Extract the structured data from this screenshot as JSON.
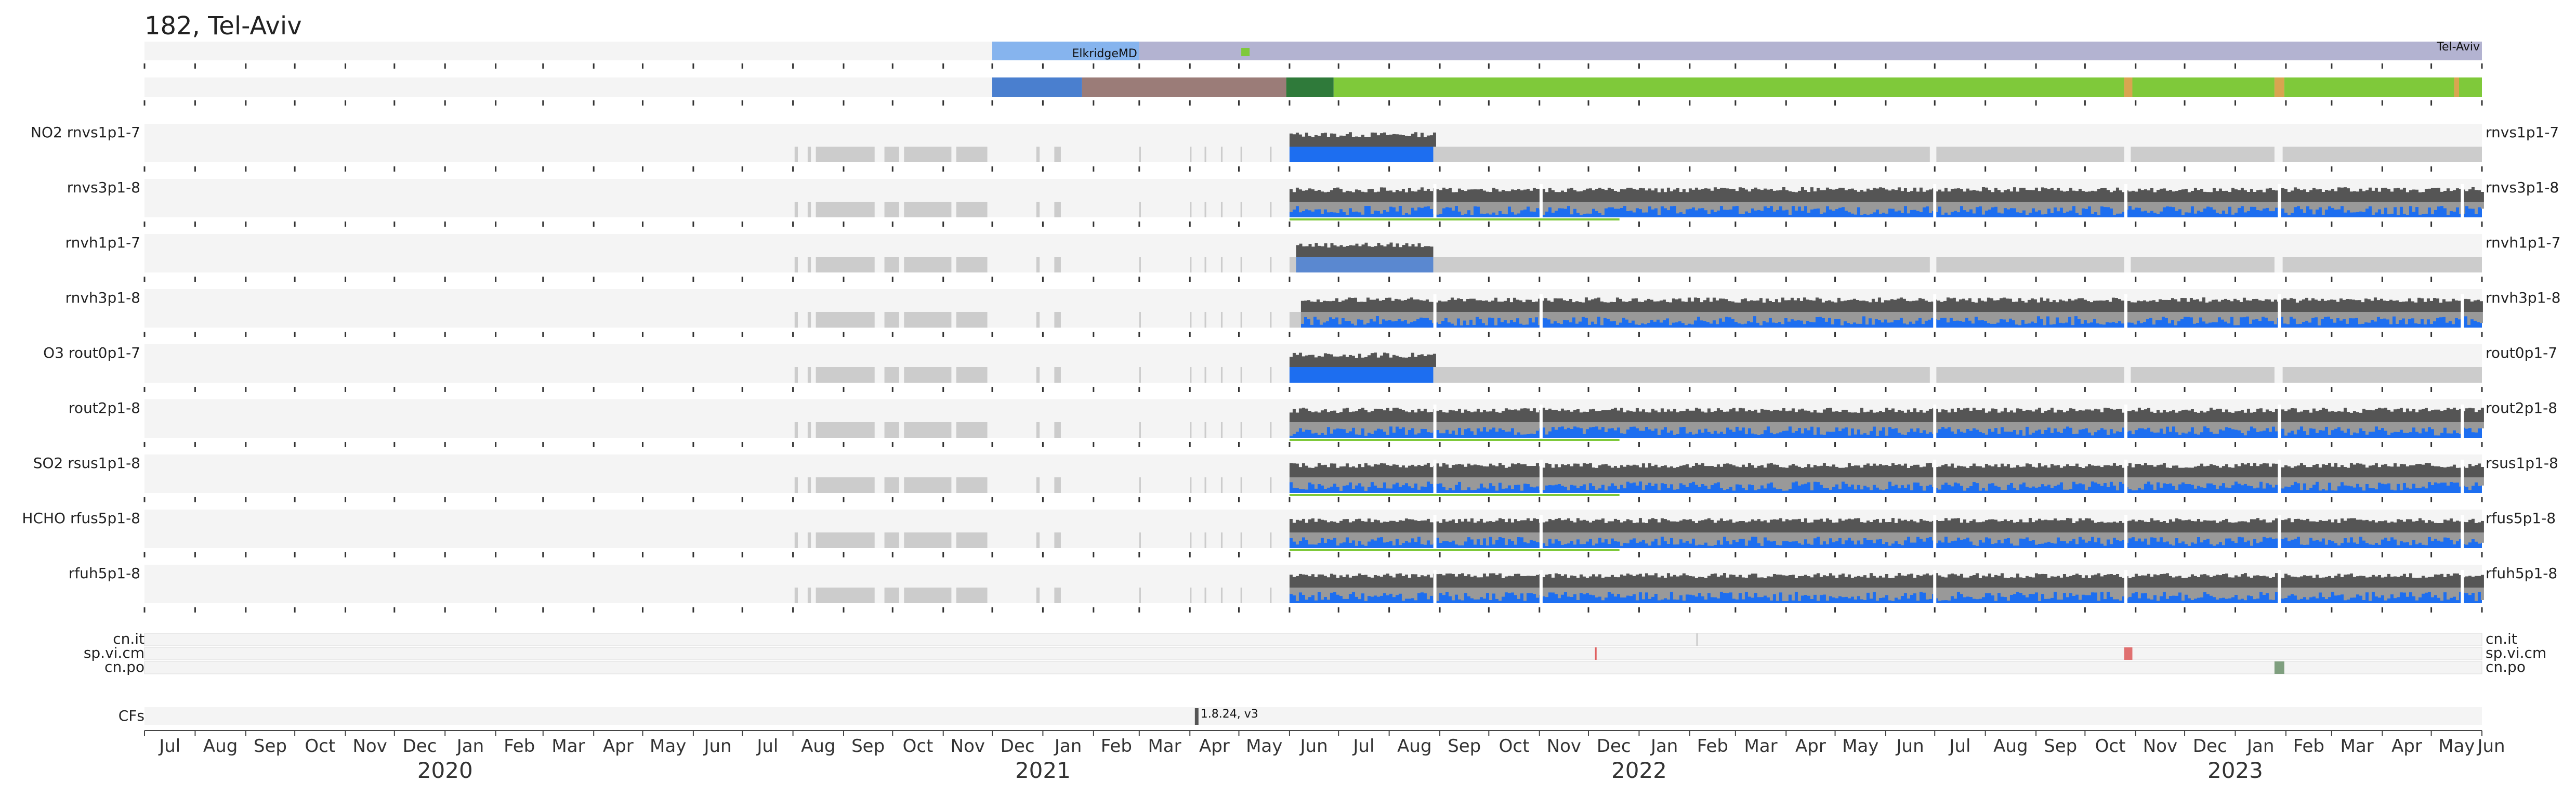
{
  "title": "182, Tel-Aviv",
  "colors": {
    "track_bg": "#f4f4f4",
    "data_dark": "#555555",
    "data_blue": "#1d6ef0",
    "data_gray_fill": "#999999",
    "unavailable": "#cccccc",
    "flag_green": "#7fc93a",
    "tick": "#333333"
  },
  "chart_data": {
    "type": "timeline",
    "time_axis": {
      "start": "2019-07",
      "end": "2023-06",
      "months": [
        "Jul",
        "Aug",
        "Sep",
        "Oct",
        "Nov",
        "Dec",
        "Jan",
        "Feb",
        "Mar",
        "Apr",
        "May",
        "Jun",
        "Jul",
        "Aug",
        "Sep",
        "Oct",
        "Nov",
        "Dec",
        "Jan",
        "Feb",
        "Mar",
        "Apr",
        "May",
        "Jun",
        "Jul",
        "Aug",
        "Sep",
        "Oct",
        "Nov",
        "Dec",
        "Jan",
        "Feb",
        "Mar",
        "Apr",
        "May",
        "Jun",
        "Jul",
        "Aug",
        "Sep",
        "Oct",
        "Nov",
        "Dec",
        "Jan",
        "Feb",
        "Mar",
        "Apr",
        "May",
        "Jun"
      ],
      "years": [
        {
          "label": "2020",
          "month_index": 6
        },
        {
          "label": "2021",
          "month_index": 18
        },
        {
          "label": "2022",
          "month_index": 30
        },
        {
          "label": "2023",
          "month_index": 42
        }
      ]
    },
    "location_track": [
      {
        "label": "ElkridgeMD",
        "start": "2020-12-01",
        "end": "2021-03-01",
        "color": "#86b4ee"
      },
      {
        "label": "Tel-Aviv",
        "start": "2021-03-01",
        "end": "2023-06-01",
        "color": "#b3b3d1"
      }
    ],
    "location_marker": {
      "date": "2021-05-05",
      "color": "#7fc93a"
    },
    "status_track": [
      {
        "start": "2020-12-01",
        "end": "2021-01-25",
        "color": "#4a7fcf"
      },
      {
        "start": "2021-01-25",
        "end": "2021-05-30",
        "color": "#9b7c78"
      },
      {
        "start": "2021-05-30",
        "end": "2021-06-28",
        "color": "#2f7a3a"
      },
      {
        "start": "2021-06-28",
        "end": "2022-10-25",
        "color": "#7fc93a"
      },
      {
        "start": "2022-10-25",
        "end": "2022-10-30",
        "color": "#d9a550"
      },
      {
        "start": "2022-10-30",
        "end": "2023-01-25",
        "color": "#7fc93a"
      },
      {
        "start": "2023-01-25",
        "end": "2023-01-31",
        "color": "#d9a550"
      },
      {
        "start": "2023-01-31",
        "end": "2023-05-15",
        "color": "#7fc93a"
      },
      {
        "start": "2023-05-15",
        "end": "2023-05-18",
        "color": "#d9a550"
      },
      {
        "start": "2023-05-18",
        "end": "2023-06-01",
        "color": "#7fc93a"
      }
    ],
    "unavailable_segments": [
      [
        "2020-08-02",
        "2020-08-04"
      ],
      [
        "2020-08-10",
        "2020-08-12"
      ],
      [
        "2020-08-15",
        "2020-09-20"
      ],
      [
        "2020-09-26",
        "2020-10-05"
      ],
      [
        "2020-10-08",
        "2020-11-06"
      ],
      [
        "2020-11-09",
        "2020-11-28"
      ],
      [
        "2020-12-28",
        "2020-12-30"
      ],
      [
        "2021-01-08",
        "2021-01-12"
      ],
      [
        "2021-03-01",
        "2021-03-02"
      ],
      [
        "2021-04-01",
        "2021-04-02"
      ],
      [
        "2021-04-10",
        "2021-04-11"
      ],
      [
        "2021-04-20",
        "2021-04-21"
      ],
      [
        "2021-05-02",
        "2021-05-03"
      ],
      [
        "2021-05-20",
        "2021-05-21"
      ],
      [
        "2021-06-01",
        "2021-06-08"
      ]
    ],
    "unavailable_after": [
      [
        "2021-08-28",
        "2022-06-28"
      ],
      [
        "2022-07-02",
        "2022-10-25"
      ],
      [
        "2022-10-29",
        "2023-01-25"
      ],
      [
        "2023-01-30",
        "2023-06-01"
      ]
    ],
    "series": [
      {
        "group": "NO2",
        "name": "rnvs1p1-7",
        "data_start": "2021-06-01",
        "data_end": "2021-08-28",
        "style": "blue_solid",
        "flag": null
      },
      {
        "group": "",
        "name": "rnvs3p1-8",
        "data_start": "2021-06-01",
        "data_end": "2023-06-01",
        "style": "blue_gray",
        "flag": [
          "2021-06-01",
          "2021-12-20"
        ]
      },
      {
        "group": "",
        "name": "rnvh1p1-7",
        "data_start": "2021-06-05",
        "data_end": "2021-08-28",
        "style": "blue_half",
        "flag": null
      },
      {
        "group": "",
        "name": "rnvh3p1-8",
        "data_start": "2021-06-08",
        "data_end": "2023-06-01",
        "style": "blue_gray",
        "flag": null
      },
      {
        "group": "O3",
        "name": "rout0p1-7",
        "data_start": "2021-06-01",
        "data_end": "2021-08-28",
        "style": "blue_solid",
        "flag": null
      },
      {
        "group": "",
        "name": "rout2p1-8",
        "data_start": "2021-06-01",
        "data_end": "2023-06-01",
        "style": "blue_gray",
        "flag": [
          "2021-06-01",
          "2021-12-20"
        ]
      },
      {
        "group": "SO2",
        "name": "rsus1p1-8",
        "data_start": "2021-06-01",
        "data_end": "2023-06-01",
        "style": "blue_gray",
        "flag": [
          "2021-06-01",
          "2021-12-20"
        ]
      },
      {
        "group": "HCHO",
        "name": "rfus5p1-8",
        "data_start": "2021-06-01",
        "data_end": "2023-06-01",
        "style": "blue_gray",
        "flag": [
          "2021-06-01",
          "2021-12-20"
        ]
      },
      {
        "group": "",
        "name": "rfuh5p1-8",
        "data_start": "2021-06-01",
        "data_end": "2023-06-01",
        "style": "blue_gray",
        "flag": null
      }
    ],
    "gaps_in_data": [
      "2021-08-29",
      "2021-11-02",
      "2022-07-01",
      "2022-10-26",
      "2023-01-28",
      "2023-05-20"
    ],
    "event_rows": [
      {
        "name": "cn.it",
        "marks": [
          {
            "date": "2022-02-05",
            "color": "#cccccc",
            "width_days": 1
          }
        ]
      },
      {
        "name": "sp.vi.cm",
        "marks": [
          {
            "date": "2021-12-05",
            "color": "#e06060",
            "width_days": 1
          },
          {
            "date": "2022-10-25",
            "color": "#e07070",
            "width_days": 5
          }
        ]
      },
      {
        "name": "cn.po",
        "marks": [
          {
            "date": "2023-01-25",
            "color": "#7f9f7f",
            "width_days": 6
          }
        ]
      }
    ],
    "cfs": {
      "label": "CFs",
      "marks": [
        {
          "date": "2021-04-05",
          "text": "1.8.24, v3"
        }
      ]
    }
  }
}
